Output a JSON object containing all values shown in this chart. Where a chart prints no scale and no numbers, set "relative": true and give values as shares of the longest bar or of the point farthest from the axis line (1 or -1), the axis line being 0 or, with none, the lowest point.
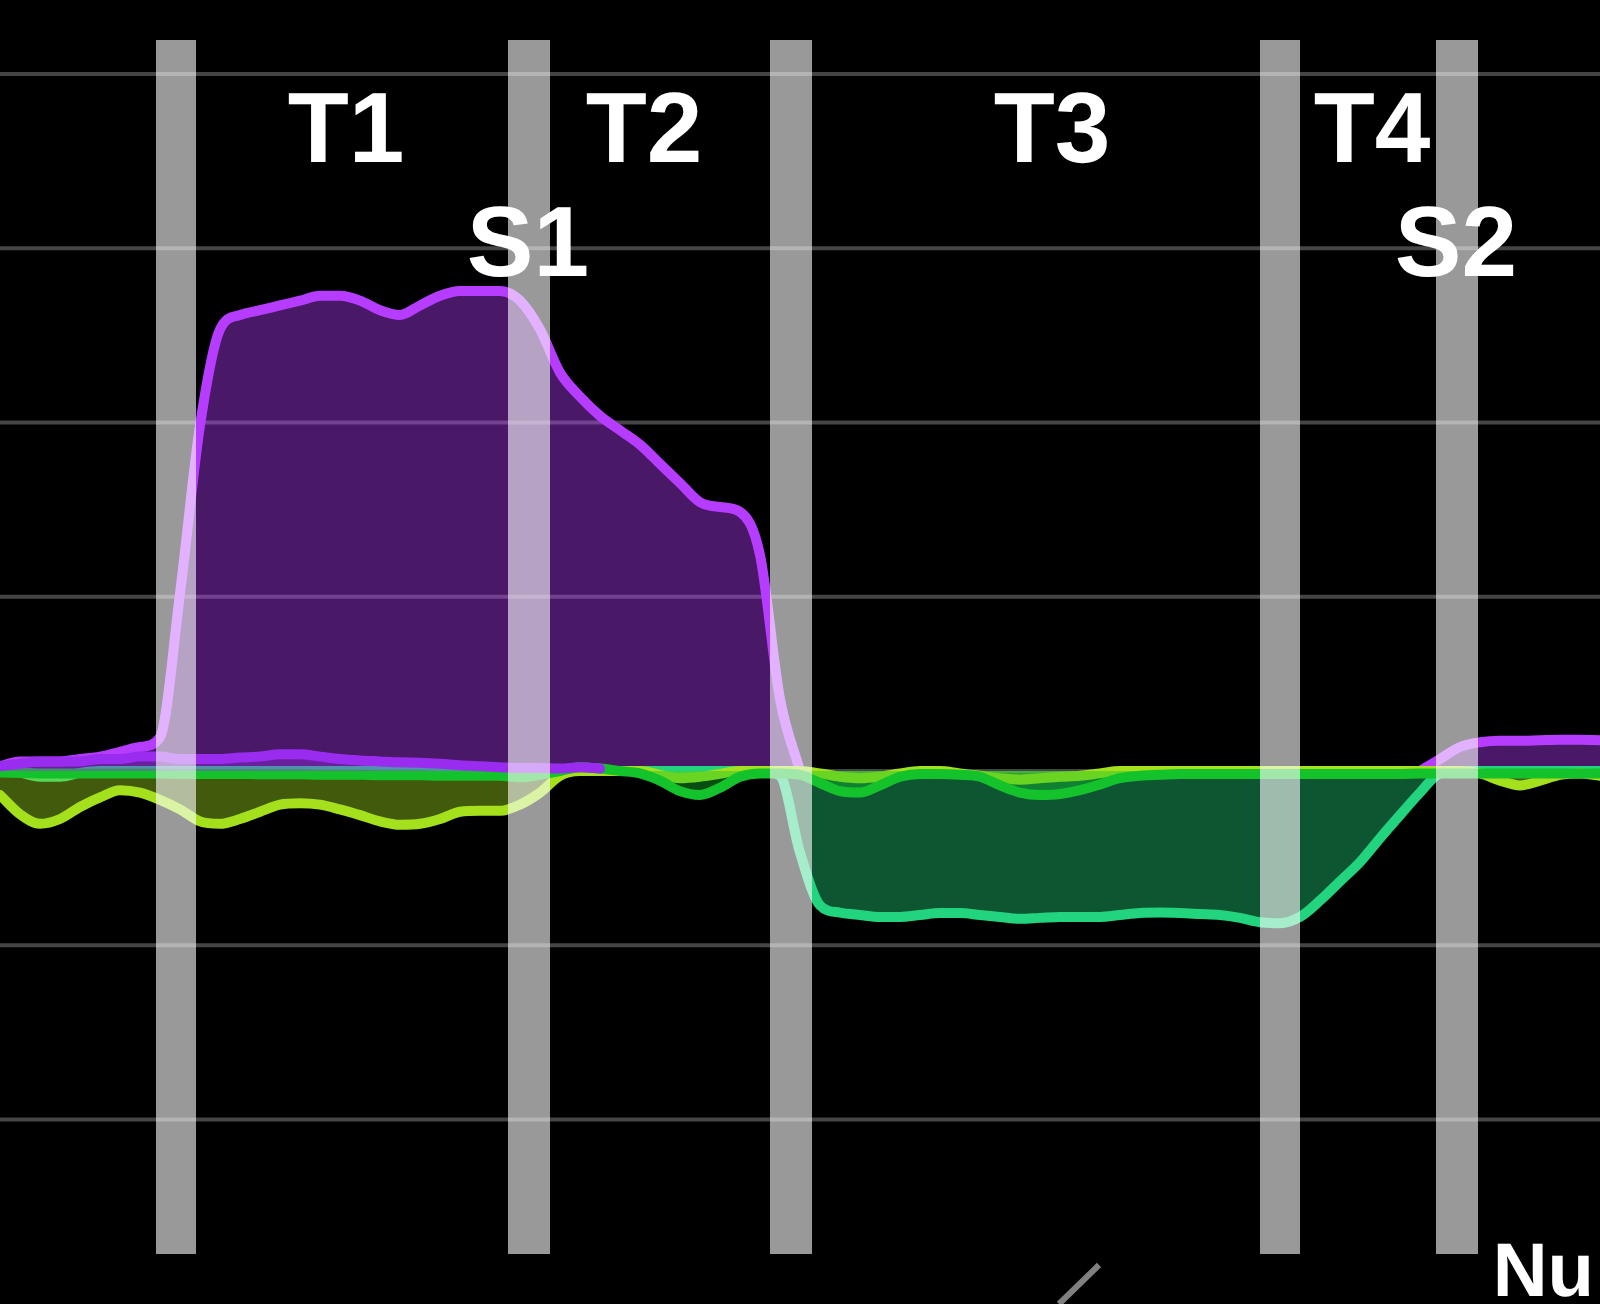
{
  "chart_data": {
    "type": "area",
    "relative": true,
    "xlabel": "Nu",
    "tick_labels": false,
    "ref_lines": [
      {
        "axis": "y",
        "value": 1.452,
        "color": "#454545"
      },
      {
        "axis": "y",
        "value": 1.089,
        "color": "#454545"
      },
      {
        "axis": "y",
        "value": 0.726,
        "color": "#454545"
      },
      {
        "axis": "y",
        "value": 0.363,
        "color": "#454545"
      },
      {
        "axis": "y",
        "value": -0.363,
        "color": "#454545"
      },
      {
        "axis": "y",
        "value": -0.726,
        "color": "#454545"
      }
    ],
    "categories": [
      null,
      null,
      null,
      null,
      null,
      null,
      null,
      null,
      null,
      null,
      null,
      null,
      null,
      null,
      null,
      null,
      null,
      null,
      null,
      null,
      null,
      null,
      null,
      null,
      null,
      null,
      null,
      null,
      null,
      null,
      null,
      null,
      null,
      null,
      null,
      null,
      null,
      null,
      null,
      null,
      null,
      null,
      null,
      null,
      null,
      null,
      null,
      null,
      null,
      null,
      null,
      null,
      null,
      null,
      null,
      null,
      null,
      null,
      null,
      null,
      null,
      null,
      null,
      null,
      null,
      null,
      null,
      null,
      null,
      null,
      null,
      null,
      null,
      null,
      null,
      null,
      null,
      null,
      null,
      null,
      null
    ],
    "series": [
      {
        "color": "#b63cff",
        "values": [
          0.01,
          0.02,
          0.02,
          0.02,
          0.025,
          0.03,
          0.04,
          0.05,
          0.07,
          0.37,
          0.72,
          0.92,
          0.95,
          0.96,
          0.97,
          0.98,
          0.99,
          0.99,
          0.98,
          0.96,
          0.95,
          0.97,
          0.99,
          1,
          1,
          1,
          0.98,
          0.92,
          0.83,
          0.78,
          0.74,
          0.71,
          0.68,
          0.64,
          0.6,
          0.56,
          0.55,
          0.54,
          0.45,
          0.15,
          0,
          null,
          null,
          null,
          null,
          null,
          null,
          null,
          null,
          null,
          null,
          null,
          null,
          null,
          null,
          null,
          null,
          null,
          null,
          null,
          null,
          null,
          null,
          null,
          null,
          null,
          null,
          null,
          null,
          null,
          null,
          0,
          0.025,
          0.05,
          0.06,
          0.063,
          0.063,
          0.064,
          0.065,
          0.065,
          0.064
        ]
      },
      {
        "color": "#22d47e",
        "values": [
          0.005,
          -0.003,
          -0.012,
          -0.012,
          -0.004,
          0,
          0,
          0,
          0,
          0,
          0,
          0,
          0,
          0,
          0,
          0,
          0,
          0,
          0,
          0,
          0,
          0,
          0,
          0,
          0,
          0,
          0,
          0,
          0,
          0,
          0,
          0,
          0,
          0,
          0,
          0,
          0,
          0,
          0,
          -0.01,
          -0.17,
          -0.28,
          -0.295,
          -0.3,
          -0.304,
          -0.304,
          -0.3,
          -0.296,
          -0.296,
          -0.3,
          -0.304,
          -0.308,
          -0.306,
          -0.304,
          -0.304,
          -0.304,
          -0.3,
          -0.296,
          -0.295,
          -0.296,
          -0.298,
          -0.3,
          -0.306,
          -0.315,
          -0.317,
          -0.304,
          -0.27,
          -0.23,
          -0.19,
          -0.14,
          -0.092,
          -0.045,
          -0.005,
          0,
          0,
          0,
          0,
          0,
          0,
          0,
          0
        ]
      },
      {
        "color": "#a4e01c",
        "values": [
          -0.05,
          -0.09,
          -0.11,
          -0.1,
          -0.075,
          -0.055,
          -0.04,
          -0.045,
          -0.06,
          -0.08,
          -0.105,
          -0.11,
          -0.1,
          -0.085,
          -0.07,
          -0.067,
          -0.07,
          -0.08,
          -0.092,
          -0.105,
          -0.112,
          -0.11,
          -0.1,
          -0.085,
          -0.083,
          -0.083,
          -0.07,
          -0.045,
          -0.01,
          0,
          0,
          0,
          0,
          -0.008,
          -0.015,
          -0.012,
          -0.006,
          0,
          0,
          0,
          0,
          -0.005,
          -0.012,
          -0.015,
          -0.012,
          -0.005,
          0,
          0,
          -0.005,
          -0.01,
          -0.015,
          -0.018,
          -0.015,
          -0.012,
          -0.01,
          -0.005,
          0,
          0,
          0,
          0,
          0,
          0,
          0,
          0,
          0,
          0,
          0,
          0,
          0,
          0,
          0,
          0,
          0,
          0,
          -0.005,
          -0.02,
          -0.03,
          -0.02,
          -0.008,
          -0.005,
          -0.01
        ]
      },
      {
        "color": "#14c22c",
        "values": [
          -0.003,
          -0.004,
          -0.005,
          -0.005,
          -0.005,
          -0.005,
          -0.005,
          -0.005,
          -0.005,
          -0.006,
          -0.006,
          -0.006,
          -0.006,
          -0.007,
          -0.007,
          -0.007,
          -0.008,
          -0.008,
          -0.008,
          -0.009,
          -0.009,
          -0.009,
          -0.01,
          -0.01,
          -0.01,
          -0.01,
          -0.013,
          -0.008,
          0,
          0.008,
          0.005,
          0,
          -0.005,
          -0.02,
          -0.042,
          -0.05,
          -0.035,
          -0.012,
          -0.005,
          -0.005,
          -0.008,
          -0.025,
          -0.042,
          -0.045,
          -0.03,
          -0.012,
          -0.006,
          -0.006,
          -0.008,
          -0.012,
          -0.03,
          -0.045,
          -0.05,
          -0.048,
          -0.04,
          -0.028,
          -0.015,
          -0.01,
          -0.008,
          -0.006,
          -0.006,
          -0.006,
          -0.006,
          -0.006,
          -0.006,
          -0.006,
          -0.006,
          -0.006,
          -0.006,
          -0.006,
          -0.006,
          -0.005,
          -0.005,
          -0.005,
          -0.005,
          -0.005,
          -0.005,
          -0.005,
          -0.005,
          -0.005,
          -0.005
        ]
      },
      {
        "color": "#9a2cf0",
        "values": [
          0.01,
          0.015,
          0.02,
          0.02,
          0.02,
          0.025,
          0.025,
          0.03,
          0.03,
          0.025,
          0.025,
          0.025,
          0.028,
          0.03,
          0.035,
          0.035,
          0.03,
          0.025,
          0.022,
          0.02,
          0.018,
          0.017,
          0.015,
          0.012,
          0.01,
          0.008,
          0.006,
          0.006,
          0.005,
          0.008,
          0.005,
          null,
          null,
          null,
          null,
          null,
          null,
          null,
          null,
          null,
          null,
          null,
          null,
          null,
          null,
          null,
          null,
          null,
          null,
          null,
          null,
          null,
          null,
          null,
          null,
          null,
          null,
          null,
          null,
          null,
          null,
          null,
          null,
          null,
          null,
          null,
          null,
          null,
          null,
          null,
          null,
          null,
          null,
          null,
          null,
          null,
          null,
          null,
          null,
          null,
          null
        ]
      }
    ],
    "annotations": [
      "T1",
      "T2",
      "T3",
      "T4",
      "S1",
      "S2"
    ]
  }
}
